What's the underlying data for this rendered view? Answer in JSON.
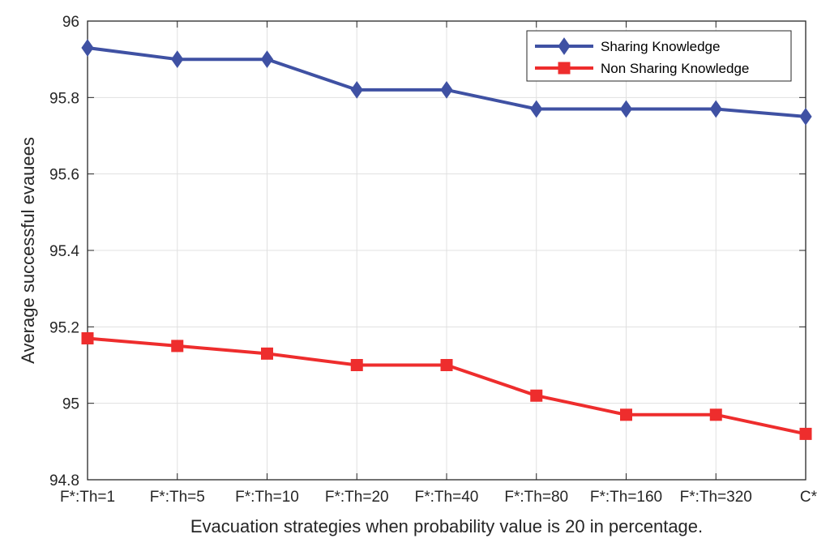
{
  "chart_data": {
    "type": "line",
    "title": "",
    "xlabel": "Evacuation strategies when probability value is 20 in percentage.",
    "ylabel": "Average successful evauees",
    "categories": [
      "F*:Th=1",
      "F*:Th=5",
      "F*:Th=10",
      "F*:Th=20",
      "F*:Th=40",
      "F*:Th=80",
      "F*:Th=160",
      "F*:Th=320",
      "C*"
    ],
    "ylim": [
      94.8,
      96
    ],
    "yticks": [
      94.8,
      95,
      95.2,
      95.4,
      95.6,
      95.8,
      96
    ],
    "ytick_labels": [
      "94.8",
      "95",
      "95.2",
      "95.4",
      "95.6",
      "95.8",
      "96"
    ],
    "grid": true,
    "legend_position": "top-right",
    "series": [
      {
        "name": "Sharing Knowledge",
        "color": "#3f51a3",
        "marker": "diamond",
        "values": [
          95.93,
          95.9,
          95.9,
          95.82,
          95.82,
          95.77,
          95.77,
          95.77,
          95.75
        ]
      },
      {
        "name": "Non Sharing Knowledge",
        "color": "#ee2d2d",
        "marker": "square",
        "values": [
          95.17,
          95.15,
          95.13,
          95.1,
          95.1,
          95.02,
          94.97,
          94.97,
          94.92
        ]
      }
    ]
  }
}
